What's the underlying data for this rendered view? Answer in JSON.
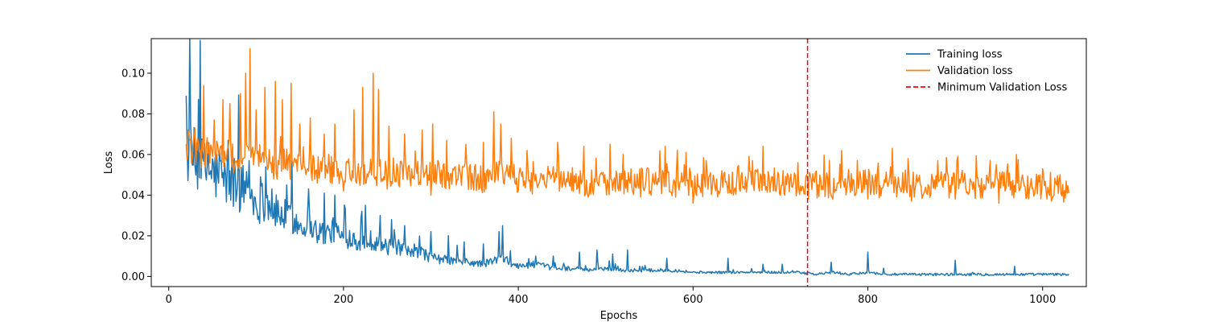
{
  "chart_data": {
    "type": "line",
    "title": "",
    "xlabel": "Epochs",
    "ylabel": "Loss",
    "xlim": [
      -20,
      1050
    ],
    "ylim": [
      -0.005,
      0.117
    ],
    "xticks": [
      0,
      200,
      400,
      600,
      800,
      1000
    ],
    "xtick_labels": [
      "0",
      "200",
      "400",
      "600",
      "800",
      "1000"
    ],
    "yticks": [
      0.0,
      0.02,
      0.04,
      0.06,
      0.08,
      0.1
    ],
    "ytick_labels": [
      "0.00",
      "0.02",
      "0.04",
      "0.06",
      "0.08",
      "0.10"
    ],
    "grid": false,
    "legend_position": "top-right",
    "series": [
      {
        "name": "Training loss",
        "color": "#1f77b4",
        "style": "solid",
        "x": [
          20,
          30,
          40,
          50,
          60,
          70,
          80,
          90,
          100,
          110,
          120,
          130,
          140,
          150,
          160,
          170,
          180,
          190,
          200,
          210,
          220,
          230,
          240,
          250,
          260,
          270,
          280,
          290,
          300,
          320,
          340,
          360,
          380,
          400,
          420,
          440,
          460,
          480,
          500,
          520,
          540,
          560,
          580,
          600,
          620,
          640,
          660,
          680,
          700,
          720,
          740,
          760,
          780,
          800,
          820,
          840,
          860,
          880,
          900,
          920,
          940,
          960,
          980,
          1000,
          1020,
          1030
        ],
        "y": [
          0.061,
          0.057,
          0.053,
          0.051,
          0.048,
          0.046,
          0.043,
          0.045,
          0.035,
          0.038,
          0.032,
          0.03,
          0.029,
          0.025,
          0.027,
          0.022,
          0.021,
          0.023,
          0.018,
          0.02,
          0.016,
          0.018,
          0.017,
          0.014,
          0.015,
          0.012,
          0.011,
          0.012,
          0.009,
          0.008,
          0.007,
          0.006,
          0.009,
          0.005,
          0.006,
          0.004,
          0.004,
          0.003,
          0.004,
          0.003,
          0.003,
          0.003,
          0.003,
          0.002,
          0.002,
          0.002,
          0.002,
          0.002,
          0.002,
          0.002,
          0.001,
          0.002,
          0.001,
          0.002,
          0.001,
          0.001,
          0.001,
          0.001,
          0.001,
          0.001,
          0.001,
          0.001,
          0.001,
          0.001,
          0.001,
          0.001
        ],
        "spikes": [
          [
            45,
            0.066
          ],
          [
            58,
            0.062
          ],
          [
            68,
            0.067
          ],
          [
            75,
            0.058
          ],
          [
            92,
            0.057
          ],
          [
            105,
            0.049
          ],
          [
            118,
            0.043
          ],
          [
            135,
            0.045
          ],
          [
            160,
            0.043
          ],
          [
            178,
            0.041
          ],
          [
            190,
            0.04
          ],
          [
            225,
            0.035
          ],
          [
            242,
            0.03
          ],
          [
            255,
            0.028
          ],
          [
            270,
            0.025
          ],
          [
            300,
            0.022
          ],
          [
            320,
            0.02
          ],
          [
            338,
            0.017
          ],
          [
            360,
            0.016
          ],
          [
            378,
            0.022
          ],
          [
            382,
            0.025
          ],
          [
            420,
            0.01
          ],
          [
            440,
            0.01
          ],
          [
            470,
            0.012
          ],
          [
            490,
            0.013
          ],
          [
            508,
            0.011
          ],
          [
            525,
            0.013
          ],
          [
            570,
            0.009
          ],
          [
            640,
            0.009
          ],
          [
            680,
            0.006
          ],
          [
            702,
            0.006
          ],
          [
            758,
            0.007
          ],
          [
            800,
            0.012
          ],
          [
            818,
            0.004
          ],
          [
            900,
            0.008
          ],
          [
            968,
            0.005
          ]
        ]
      },
      {
        "name": "Validation loss",
        "color": "#ff7f0e",
        "style": "solid",
        "x": [
          20,
          30,
          40,
          50,
          60,
          70,
          80,
          90,
          100,
          110,
          120,
          130,
          140,
          150,
          160,
          170,
          180,
          190,
          200,
          210,
          220,
          230,
          240,
          250,
          260,
          270,
          280,
          290,
          300,
          320,
          340,
          360,
          380,
          400,
          420,
          440,
          460,
          480,
          500,
          520,
          540,
          560,
          580,
          600,
          620,
          640,
          660,
          680,
          700,
          720,
          740,
          760,
          780,
          800,
          820,
          840,
          860,
          880,
          900,
          920,
          940,
          960,
          980,
          1000,
          1020,
          1030
        ],
        "y": [
          0.065,
          0.062,
          0.06,
          0.063,
          0.058,
          0.06,
          0.055,
          0.06,
          0.056,
          0.058,
          0.054,
          0.056,
          0.055,
          0.053,
          0.055,
          0.052,
          0.054,
          0.051,
          0.053,
          0.05,
          0.052,
          0.051,
          0.052,
          0.05,
          0.052,
          0.049,
          0.051,
          0.05,
          0.05,
          0.05,
          0.049,
          0.048,
          0.05,
          0.048,
          0.047,
          0.048,
          0.047,
          0.046,
          0.047,
          0.046,
          0.047,
          0.046,
          0.046,
          0.045,
          0.046,
          0.045,
          0.046,
          0.046,
          0.046,
          0.046,
          0.045,
          0.045,
          0.046,
          0.046,
          0.045,
          0.046,
          0.045,
          0.046,
          0.045,
          0.045,
          0.045,
          0.046,
          0.044,
          0.045,
          0.044,
          0.042
        ],
        "spikes": [
          [
            22,
            0.072
          ],
          [
            30,
            0.073
          ],
          [
            40,
            0.094
          ],
          [
            52,
            0.077
          ],
          [
            62,
            0.087
          ],
          [
            70,
            0.085
          ],
          [
            82,
            0.09
          ],
          [
            88,
            0.1
          ],
          [
            93,
            0.112
          ],
          [
            100,
            0.082
          ],
          [
            110,
            0.093
          ],
          [
            122,
            0.096
          ],
          [
            130,
            0.087
          ],
          [
            140,
            0.095
          ],
          [
            150,
            0.075
          ],
          [
            162,
            0.078
          ],
          [
            178,
            0.07
          ],
          [
            190,
            0.075
          ],
          [
            200,
            0.072
          ],
          [
            212,
            0.082
          ],
          [
            222,
            0.093
          ],
          [
            234,
            0.1
          ],
          [
            240,
            0.092
          ],
          [
            252,
            0.074
          ],
          [
            270,
            0.07
          ],
          [
            290,
            0.072
          ],
          [
            302,
            0.075
          ],
          [
            318,
            0.067
          ],
          [
            340,
            0.065
          ],
          [
            360,
            0.066
          ],
          [
            372,
            0.081
          ],
          [
            380,
            0.075
          ],
          [
            392,
            0.068
          ],
          [
            410,
            0.062
          ],
          [
            445,
            0.066
          ],
          [
            475,
            0.064
          ],
          [
            505,
            0.065
          ],
          [
            520,
            0.06
          ],
          [
            540,
            0.06
          ],
          [
            568,
            0.064
          ],
          [
            592,
            0.061
          ],
          [
            615,
            0.057
          ],
          [
            640,
            0.058
          ],
          [
            668,
            0.057
          ],
          [
            680,
            0.064
          ],
          [
            700,
            0.058
          ],
          [
            720,
            0.056
          ],
          [
            756,
            0.057
          ],
          [
            770,
            0.062
          ],
          [
            788,
            0.057
          ],
          [
            800,
            0.056
          ],
          [
            828,
            0.063
          ],
          [
            846,
            0.058
          ],
          [
            880,
            0.057
          ],
          [
            903,
            0.059
          ],
          [
            940,
            0.057
          ],
          [
            970,
            0.06
          ],
          [
            1000,
            0.053
          ],
          [
            1020,
            0.05
          ]
        ],
        "dips": [
          [
            120,
            0.048
          ],
          [
            170,
            0.046
          ],
          [
            200,
            0.042
          ],
          [
            250,
            0.043
          ],
          [
            300,
            0.04
          ],
          [
            400,
            0.042
          ],
          [
            480,
            0.039
          ],
          [
            540,
            0.039
          ],
          [
            580,
            0.039
          ],
          [
            600,
            0.036
          ],
          [
            640,
            0.041
          ],
          [
            700,
            0.04
          ],
          [
            732,
            0.038
          ],
          [
            760,
            0.038
          ],
          [
            800,
            0.038
          ],
          [
            850,
            0.037
          ],
          [
            900,
            0.038
          ],
          [
            950,
            0.036
          ],
          [
            1010,
            0.037
          ],
          [
            1030,
            0.041
          ]
        ]
      }
    ],
    "annotations": [
      {
        "type": "vline",
        "x": 731,
        "name": "Minimum Validation Loss",
        "color": "#ff0000",
        "style": "dashed"
      }
    ],
    "legend": [
      {
        "label": "Training loss",
        "color": "#1f77b4",
        "style": "solid"
      },
      {
        "label": "Validation loss",
        "color": "#ff7f0e",
        "style": "solid"
      },
      {
        "label": "Minimum Validation Loss",
        "color": "#ff0000",
        "style": "dashed"
      }
    ]
  }
}
